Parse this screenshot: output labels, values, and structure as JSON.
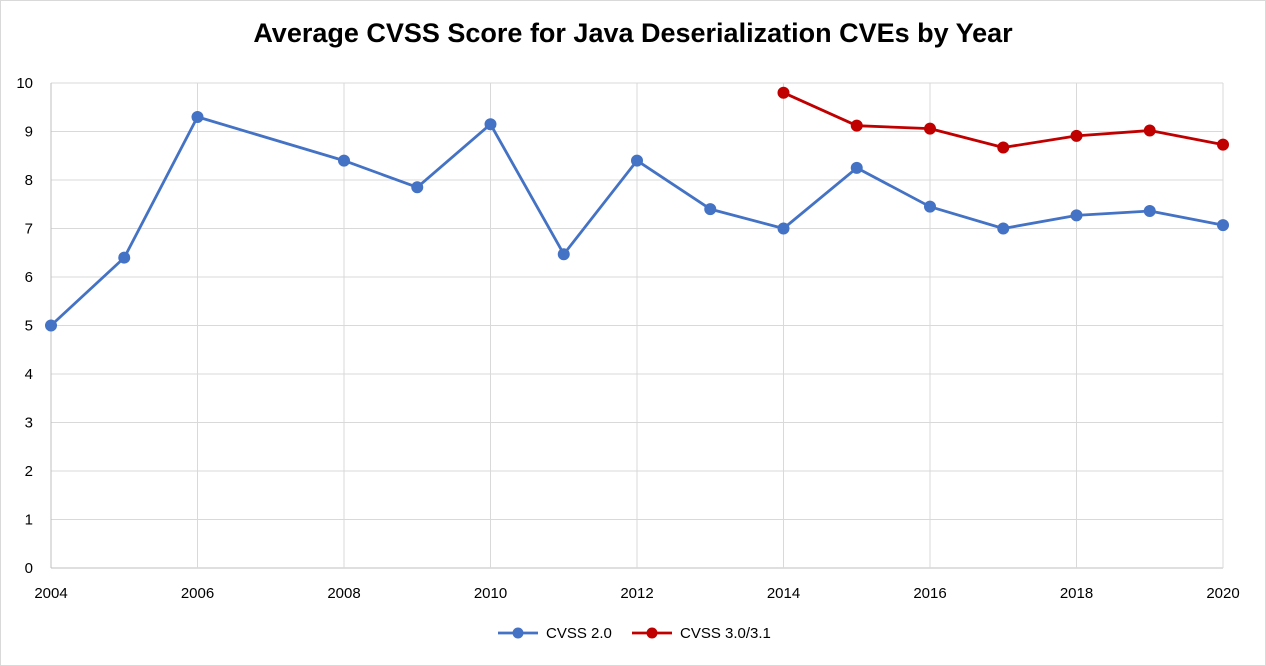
{
  "chart_data": {
    "type": "line",
    "title": "Average CVSS Score for Java Deserialization CVEs by Year",
    "xlabel": "",
    "ylabel": "",
    "xlim": [
      2004,
      2020
    ],
    "ylim": [
      0,
      10
    ],
    "x_ticks": [
      "2004",
      "2006",
      "2008",
      "2010",
      "2012",
      "2014",
      "2016",
      "2018",
      "2020"
    ],
    "y_ticks": [
      "0",
      "1",
      "2",
      "3",
      "4",
      "5",
      "6",
      "7",
      "8",
      "9",
      "10"
    ],
    "grid": true,
    "legend_position": "bottom",
    "series": [
      {
        "name": "CVSS 2.0",
        "color": "#4472c4",
        "points": [
          [
            2004,
            5.0
          ],
          [
            2005,
            6.4
          ],
          [
            2006,
            9.3
          ],
          [
            2008,
            8.4
          ],
          [
            2009,
            7.85
          ],
          [
            2010,
            9.15
          ],
          [
            2011,
            6.47
          ],
          [
            2012,
            8.4
          ],
          [
            2013,
            7.4
          ],
          [
            2014,
            7.0
          ],
          [
            2015,
            8.25
          ],
          [
            2016,
            7.45
          ],
          [
            2017,
            7.0
          ],
          [
            2018,
            7.27
          ],
          [
            2019,
            7.36
          ],
          [
            2020,
            7.07
          ]
        ]
      },
      {
        "name": "CVSS 3.0/3.1",
        "color": "#c00000",
        "points": [
          [
            2014,
            9.8
          ],
          [
            2015,
            9.12
          ],
          [
            2016,
            9.06
          ],
          [
            2017,
            8.67
          ],
          [
            2018,
            8.91
          ],
          [
            2019,
            9.02
          ],
          [
            2020,
            8.73
          ]
        ]
      }
    ]
  }
}
